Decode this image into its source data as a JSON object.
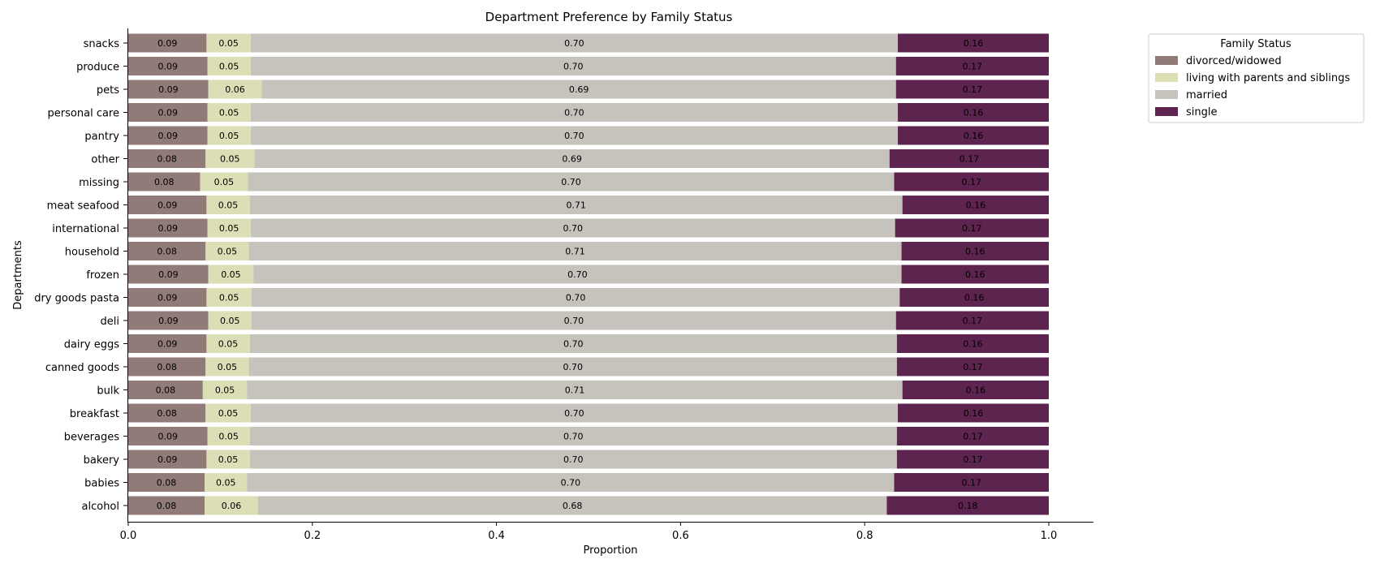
{
  "chart_data": {
    "type": "bar",
    "orientation": "horizontal",
    "stacked": true,
    "title": "Department Preference by Family Status",
    "xlabel": "Proportion",
    "ylabel": "Departments",
    "xlim": [
      0,
      1.05
    ],
    "xticks": [
      "0.0",
      "0.2",
      "0.4",
      "0.6",
      "0.8",
      "1.0"
    ],
    "grid": false,
    "legend_placement": "outside upper right",
    "categories": [
      "snacks",
      "produce",
      "pets",
      "personal care",
      "pantry",
      "other",
      "missing",
      "meat seafood",
      "international",
      "household",
      "frozen",
      "dry goods pasta",
      "deli",
      "dairy eggs",
      "canned goods",
      "bulk",
      "breakfast",
      "beverages",
      "bakery",
      "babies",
      "alcohol"
    ],
    "series": [
      {
        "name": "divorced/widowed",
        "color": "#917b79",
        "values": [
          0.085,
          0.086,
          0.087,
          0.086,
          0.086,
          0.084,
          0.078,
          0.085,
          0.086,
          0.084,
          0.087,
          0.085,
          0.087,
          0.085,
          0.084,
          0.081,
          0.084,
          0.086,
          0.085,
          0.083,
          0.083
        ],
        "labels": [
          "0.09",
          "0.09",
          "0.09",
          "0.09",
          "0.09",
          "0.08",
          "0.08",
          "0.09",
          "0.09",
          "0.08",
          "0.09",
          "0.09",
          "0.09",
          "0.09",
          "0.08",
          "0.08",
          "0.08",
          "0.09",
          "0.09",
          "0.08",
          "0.08"
        ]
      },
      {
        "name": "living with parents and siblings",
        "color": "#dcdfb6",
        "values": [
          0.048,
          0.047,
          0.058,
          0.047,
          0.047,
          0.053,
          0.052,
          0.047,
          0.047,
          0.047,
          0.049,
          0.049,
          0.047,
          0.047,
          0.047,
          0.048,
          0.049,
          0.046,
          0.047,
          0.046,
          0.058
        ],
        "labels": [
          "0.05",
          "0.05",
          "0.06",
          "0.05",
          "0.05",
          "0.05",
          "0.05",
          "0.05",
          "0.05",
          "0.05",
          "0.05",
          "0.05",
          "0.05",
          "0.05",
          "0.05",
          "0.05",
          "0.05",
          "0.05",
          "0.05",
          "0.05",
          "0.06"
        ]
      },
      {
        "name": "married",
        "color": "#c6c3bc",
        "values": [
          0.703,
          0.701,
          0.689,
          0.703,
          0.703,
          0.69,
          0.702,
          0.709,
          0.7,
          0.709,
          0.704,
          0.704,
          0.7,
          0.703,
          0.704,
          0.712,
          0.703,
          0.703,
          0.703,
          0.703,
          0.683
        ],
        "labels": [
          "0.70",
          "0.70",
          "0.69",
          "0.70",
          "0.70",
          "0.69",
          "0.70",
          "0.71",
          "0.70",
          "0.71",
          "0.70",
          "0.70",
          "0.70",
          "0.70",
          "0.70",
          "0.71",
          "0.70",
          "0.70",
          "0.70",
          "0.70",
          "0.68"
        ]
      },
      {
        "name": "single",
        "color": "#5e2450",
        "values": [
          0.164,
          0.166,
          0.166,
          0.164,
          0.164,
          0.173,
          0.168,
          0.159,
          0.167,
          0.16,
          0.16,
          0.162,
          0.166,
          0.165,
          0.165,
          0.159,
          0.164,
          0.165,
          0.165,
          0.168,
          0.176
        ],
        "labels": [
          "0.16",
          "0.17",
          "0.17",
          "0.16",
          "0.16",
          "0.17",
          "0.17",
          "0.16",
          "0.17",
          "0.16",
          "0.16",
          "0.16",
          "0.17",
          "0.16",
          "0.17",
          "0.16",
          "0.16",
          "0.17",
          "0.17",
          "0.17",
          "0.18"
        ]
      }
    ],
    "legend_title": "Family Status"
  }
}
